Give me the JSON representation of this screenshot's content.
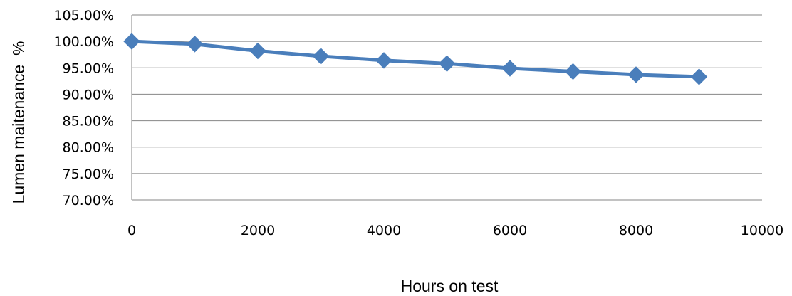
{
  "chart_data": {
    "type": "line",
    "title": "",
    "xlabel": "Hours on test",
    "ylabel": "Lumen maitenance  %",
    "xlim": [
      0,
      10000
    ],
    "ylim": [
      70,
      105
    ],
    "x_ticks": [
      0,
      2000,
      4000,
      6000,
      8000,
      10000
    ],
    "x_tick_labels": [
      "0",
      "2000",
      "4000",
      "6000",
      "8000",
      "10000"
    ],
    "y_ticks": [
      70,
      75,
      80,
      85,
      90,
      95,
      100,
      105
    ],
    "y_tick_labels": [
      "70.00%",
      "75.00%",
      "80.00%",
      "85.00%",
      "90.00%",
      "95.00%",
      "100.00%",
      "105.00%"
    ],
    "grid": "horizontal",
    "legend": "none",
    "series": [
      {
        "color": "#4A7EBB",
        "marker": "diamond",
        "x": [
          0,
          1000,
          2000,
          3000,
          4000,
          5000,
          6000,
          7000,
          8000,
          9000
        ],
        "y": [
          100.0,
          99.5,
          98.2,
          97.2,
          96.4,
          95.8,
          94.9,
          94.3,
          93.7,
          93.3
        ]
      }
    ]
  }
}
